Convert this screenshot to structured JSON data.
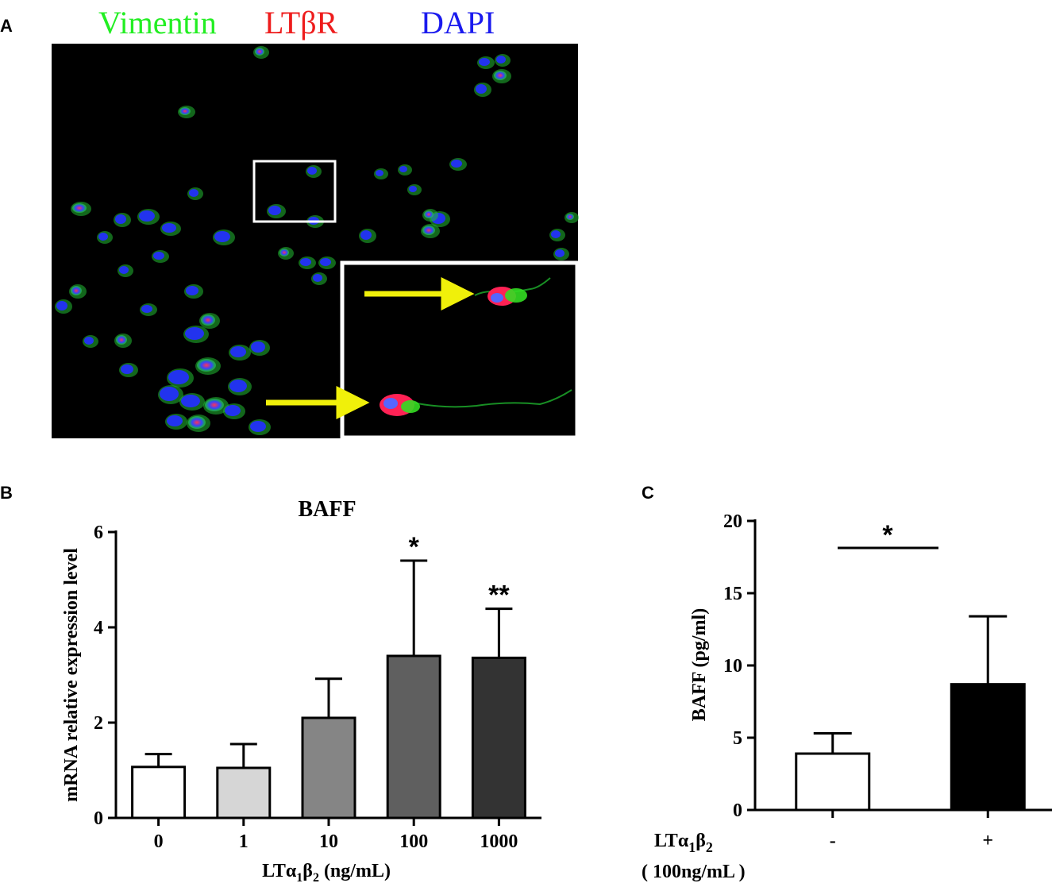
{
  "panels": {
    "a": "A",
    "b": "B",
    "c": "C"
  },
  "micrograph": {
    "legend": [
      {
        "label": "Vimentin",
        "color": "#22ee22"
      },
      {
        "label": "LTβR",
        "color": "#ee1c1c"
      },
      {
        "label": "DAPI",
        "color": "#1a1aee"
      }
    ]
  },
  "chart_b": {
    "title": "BAFF",
    "ylabel": "mRNA relative expression level",
    "xlabel_main": "LTα",
    "xlabel_sub1": "1",
    "xlabel_mid": "β",
    "xlabel_sub2": "2",
    "xlabel_unit": " (ng/mL)"
  },
  "chart_c": {
    "ylabel": "BAFF (pg/ml)",
    "xlabel_main": "LTα",
    "xlabel_sub1": "1",
    "xlabel_mid": "β",
    "xlabel_sub2": "2",
    "xlabel_unit": "( 100ng/mL )"
  },
  "chart_data": [
    {
      "type": "bar",
      "title": "BAFF",
      "xlabel": "LTα1β2 (ng/mL)",
      "ylabel": "mRNA relative expression level",
      "categories": [
        "0",
        "1",
        "10",
        "100",
        "1000"
      ],
      "values": [
        1.07,
        1.05,
        2.1,
        3.4,
        3.36
      ],
      "errors": [
        0.27,
        0.5,
        0.82,
        2.0,
        1.03
      ],
      "significance": [
        "",
        "",
        "",
        "*",
        "**"
      ],
      "colors": [
        "#ffffff",
        "#d6d6d6",
        "#858585",
        "#5f5f5f",
        "#333333"
      ],
      "ylim": [
        0,
        6
      ],
      "yticks": [
        "0",
        "2",
        "4",
        "6"
      ]
    },
    {
      "type": "bar",
      "xlabel": "LTα1β2 (100ng/mL)",
      "ylabel": "BAFF (pg/ml)",
      "categories": [
        "-",
        "+"
      ],
      "values": [
        3.9,
        8.7
      ],
      "errors": [
        1.4,
        4.7
      ],
      "colors": [
        "#ffffff",
        "#000000"
      ],
      "significance_bracket": "*",
      "ylim": [
        0,
        20
      ],
      "yticks": [
        "0",
        "5",
        "10",
        "15",
        "20"
      ]
    }
  ]
}
